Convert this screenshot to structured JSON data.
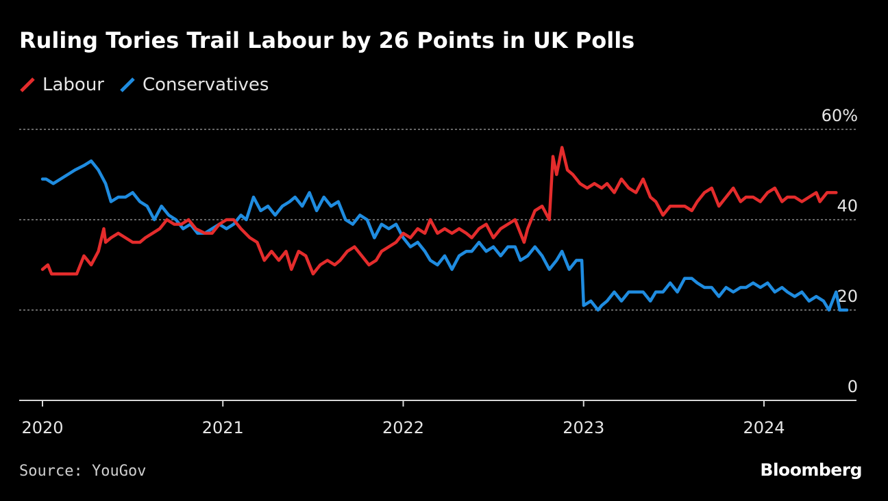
{
  "colors": {
    "background": "#000000",
    "labour": "#e42c2c",
    "conservatives": "#1f8ce0",
    "grid": "#8a8a8a",
    "axis": "#d8d8d8"
  },
  "source": "Source: YouGov",
  "brand": "Bloomberg",
  "chart_data": {
    "type": "line",
    "title": "Ruling Tories Trail Labour by 26 Points in UK Polls",
    "xlabel": "",
    "ylabel": "",
    "ylim": [
      0,
      60
    ],
    "xlim": [
      2020.0,
      2024.5
    ],
    "yticks": [
      {
        "value": 0,
        "label": "0"
      },
      {
        "value": 20,
        "label": "20"
      },
      {
        "value": 40,
        "label": "40"
      },
      {
        "value": 60,
        "label": "60%"
      }
    ],
    "xticks": [
      {
        "value": 2020,
        "label": "2020"
      },
      {
        "value": 2021,
        "label": "2021"
      },
      {
        "value": 2022,
        "label": "2022"
      },
      {
        "value": 2023,
        "label": "2023"
      },
      {
        "value": 2024,
        "label": "2024"
      }
    ],
    "grid": true,
    "legend_position": "top-left",
    "series": [
      {
        "name": "Labour",
        "color": "#e42c2c",
        "points": [
          [
            2020.0,
            29
          ],
          [
            2020.03,
            30
          ],
          [
            2020.05,
            28
          ],
          [
            2020.1,
            28
          ],
          [
            2020.15,
            28
          ],
          [
            2020.19,
            28
          ],
          [
            2020.23,
            32
          ],
          [
            2020.27,
            30
          ],
          [
            2020.31,
            33
          ],
          [
            2020.34,
            38
          ],
          [
            2020.35,
            35
          ],
          [
            2020.38,
            36
          ],
          [
            2020.42,
            37
          ],
          [
            2020.46,
            36
          ],
          [
            2020.5,
            35
          ],
          [
            2020.54,
            35
          ],
          [
            2020.57,
            36
          ],
          [
            2020.61,
            37
          ],
          [
            2020.65,
            38
          ],
          [
            2020.69,
            40
          ],
          [
            2020.73,
            39
          ],
          [
            2020.77,
            39
          ],
          [
            2020.81,
            40
          ],
          [
            2020.85,
            38
          ],
          [
            2020.9,
            37
          ],
          [
            2020.94,
            37
          ],
          [
            2020.98,
            39
          ],
          [
            2021.02,
            40
          ],
          [
            2021.06,
            40
          ],
          [
            2021.1,
            38
          ],
          [
            2021.15,
            36
          ],
          [
            2021.19,
            35
          ],
          [
            2021.23,
            31
          ],
          [
            2021.27,
            33
          ],
          [
            2021.31,
            31
          ],
          [
            2021.35,
            33
          ],
          [
            2021.38,
            29
          ],
          [
            2021.42,
            33
          ],
          [
            2021.46,
            32
          ],
          [
            2021.5,
            28
          ],
          [
            2021.54,
            30
          ],
          [
            2021.58,
            31
          ],
          [
            2021.62,
            30
          ],
          [
            2021.65,
            31
          ],
          [
            2021.69,
            33
          ],
          [
            2021.73,
            34
          ],
          [
            2021.77,
            32
          ],
          [
            2021.81,
            30
          ],
          [
            2021.85,
            31
          ],
          [
            2021.88,
            33
          ],
          [
            2021.92,
            34
          ],
          [
            2021.96,
            35
          ],
          [
            2022.0,
            37
          ],
          [
            2022.04,
            36
          ],
          [
            2022.08,
            38
          ],
          [
            2022.12,
            37
          ],
          [
            2022.15,
            40
          ],
          [
            2022.19,
            37
          ],
          [
            2022.23,
            38
          ],
          [
            2022.27,
            37
          ],
          [
            2022.31,
            38
          ],
          [
            2022.35,
            37
          ],
          [
            2022.38,
            36
          ],
          [
            2022.42,
            38
          ],
          [
            2022.46,
            39
          ],
          [
            2022.5,
            36
          ],
          [
            2022.54,
            38
          ],
          [
            2022.58,
            39
          ],
          [
            2022.62,
            40
          ],
          [
            2022.65,
            37
          ],
          [
            2022.67,
            35
          ],
          [
            2022.69,
            38
          ],
          [
            2022.73,
            42
          ],
          [
            2022.77,
            43
          ],
          [
            2022.81,
            40
          ],
          [
            2022.83,
            54
          ],
          [
            2022.85,
            50
          ],
          [
            2022.88,
            56
          ],
          [
            2022.91,
            51
          ],
          [
            2022.94,
            50
          ],
          [
            2022.98,
            48
          ],
          [
            2023.02,
            47
          ],
          [
            2023.06,
            48
          ],
          [
            2023.1,
            47
          ],
          [
            2023.13,
            48
          ],
          [
            2023.17,
            46
          ],
          [
            2023.21,
            49
          ],
          [
            2023.25,
            47
          ],
          [
            2023.29,
            46
          ],
          [
            2023.33,
            49
          ],
          [
            2023.37,
            45
          ],
          [
            2023.4,
            44
          ],
          [
            2023.44,
            41
          ],
          [
            2023.48,
            43
          ],
          [
            2023.52,
            43
          ],
          [
            2023.56,
            43
          ],
          [
            2023.6,
            42
          ],
          [
            2023.63,
            44
          ],
          [
            2023.67,
            46
          ],
          [
            2023.71,
            47
          ],
          [
            2023.75,
            43
          ],
          [
            2023.79,
            45
          ],
          [
            2023.83,
            47
          ],
          [
            2023.87,
            44
          ],
          [
            2023.9,
            45
          ],
          [
            2023.94,
            45
          ],
          [
            2023.98,
            44
          ],
          [
            2024.02,
            46
          ],
          [
            2024.06,
            47
          ],
          [
            2024.1,
            44
          ],
          [
            2024.13,
            45
          ],
          [
            2024.17,
            45
          ],
          [
            2024.21,
            44
          ],
          [
            2024.25,
            45
          ],
          [
            2024.29,
            46
          ],
          [
            2024.31,
            44
          ],
          [
            2024.35,
            46
          ],
          [
            2024.4,
            46
          ]
        ]
      },
      {
        "name": "Conservatives",
        "color": "#1f8ce0",
        "points": [
          [
            2020.0,
            49
          ],
          [
            2020.02,
            49
          ],
          [
            2020.06,
            48
          ],
          [
            2020.1,
            49
          ],
          [
            2020.14,
            50
          ],
          [
            2020.18,
            51
          ],
          [
            2020.23,
            52
          ],
          [
            2020.27,
            53
          ],
          [
            2020.31,
            51
          ],
          [
            2020.35,
            48
          ],
          [
            2020.38,
            44
          ],
          [
            2020.42,
            45
          ],
          [
            2020.46,
            45
          ],
          [
            2020.5,
            46
          ],
          [
            2020.54,
            44
          ],
          [
            2020.58,
            43
          ],
          [
            2020.62,
            40
          ],
          [
            2020.66,
            43
          ],
          [
            2020.7,
            41
          ],
          [
            2020.74,
            40
          ],
          [
            2020.78,
            38
          ],
          [
            2020.82,
            39
          ],
          [
            2020.86,
            37
          ],
          [
            2020.9,
            37
          ],
          [
            2020.94,
            38
          ],
          [
            2020.98,
            39
          ],
          [
            2021.02,
            38
          ],
          [
            2021.06,
            39
          ],
          [
            2021.1,
            41
          ],
          [
            2021.13,
            40
          ],
          [
            2021.17,
            45
          ],
          [
            2021.21,
            42
          ],
          [
            2021.25,
            43
          ],
          [
            2021.29,
            41
          ],
          [
            2021.33,
            43
          ],
          [
            2021.37,
            44
          ],
          [
            2021.4,
            45
          ],
          [
            2021.44,
            43
          ],
          [
            2021.48,
            46
          ],
          [
            2021.52,
            42
          ],
          [
            2021.56,
            45
          ],
          [
            2021.6,
            43
          ],
          [
            2021.64,
            44
          ],
          [
            2021.68,
            40
          ],
          [
            2021.72,
            39
          ],
          [
            2021.76,
            41
          ],
          [
            2021.8,
            40
          ],
          [
            2021.84,
            36
          ],
          [
            2021.88,
            39
          ],
          [
            2021.92,
            38
          ],
          [
            2021.96,
            39
          ],
          [
            2022.0,
            36
          ],
          [
            2022.04,
            34
          ],
          [
            2022.08,
            35
          ],
          [
            2022.12,
            33
          ],
          [
            2022.15,
            31
          ],
          [
            2022.19,
            30
          ],
          [
            2022.23,
            32
          ],
          [
            2022.27,
            29
          ],
          [
            2022.31,
            32
          ],
          [
            2022.35,
            33
          ],
          [
            2022.38,
            33
          ],
          [
            2022.42,
            35
          ],
          [
            2022.46,
            33
          ],
          [
            2022.5,
            34
          ],
          [
            2022.54,
            32
          ],
          [
            2022.58,
            34
          ],
          [
            2022.62,
            34
          ],
          [
            2022.65,
            31
          ],
          [
            2022.69,
            32
          ],
          [
            2022.73,
            34
          ],
          [
            2022.77,
            32
          ],
          [
            2022.81,
            29
          ],
          [
            2022.85,
            31
          ],
          [
            2022.88,
            33
          ],
          [
            2022.92,
            29
          ],
          [
            2022.96,
            31
          ],
          [
            2022.99,
            31
          ],
          [
            2023.0,
            21
          ],
          [
            2023.04,
            22
          ],
          [
            2023.08,
            20
          ],
          [
            2023.1,
            21
          ],
          [
            2023.13,
            22
          ],
          [
            2023.17,
            24
          ],
          [
            2023.21,
            22
          ],
          [
            2023.25,
            24
          ],
          [
            2023.29,
            24
          ],
          [
            2023.33,
            24
          ],
          [
            2023.37,
            22
          ],
          [
            2023.4,
            24
          ],
          [
            2023.44,
            24
          ],
          [
            2023.48,
            26
          ],
          [
            2023.52,
            24
          ],
          [
            2023.56,
            27
          ],
          [
            2023.6,
            27
          ],
          [
            2023.63,
            26
          ],
          [
            2023.67,
            25
          ],
          [
            2023.71,
            25
          ],
          [
            2023.75,
            23
          ],
          [
            2023.79,
            25
          ],
          [
            2023.83,
            24
          ],
          [
            2023.87,
            25
          ],
          [
            2023.9,
            25
          ],
          [
            2023.94,
            26
          ],
          [
            2023.98,
            25
          ],
          [
            2024.02,
            26
          ],
          [
            2024.06,
            24
          ],
          [
            2024.1,
            25
          ],
          [
            2024.13,
            24
          ],
          [
            2024.17,
            23
          ],
          [
            2024.21,
            24
          ],
          [
            2024.25,
            22
          ],
          [
            2024.29,
            23
          ],
          [
            2024.33,
            22
          ],
          [
            2024.36,
            20
          ],
          [
            2024.38,
            22
          ],
          [
            2024.4,
            24
          ],
          [
            2024.42,
            20
          ],
          [
            2024.46,
            20
          ]
        ]
      }
    ]
  }
}
